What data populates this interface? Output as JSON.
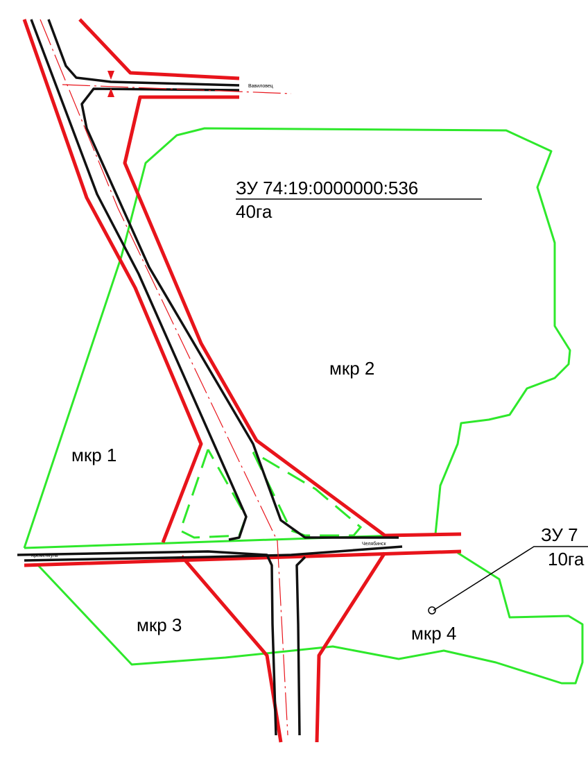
{
  "parcels": [
    {
      "id": "ЗУ 74:19:0000000:536",
      "area": "40га"
    },
    {
      "id": "ЗУ 7",
      "area": "10га"
    }
  ],
  "districts": [
    "мкр 1",
    "мкр 2",
    "мкр 3",
    "мкр 4"
  ],
  "roads": [
    "Вавиловец",
    "Кременкуль",
    "Челябинск"
  ]
}
